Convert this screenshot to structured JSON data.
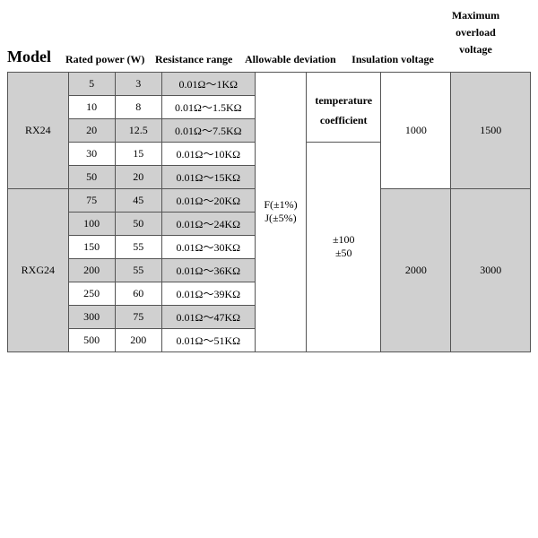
{
  "headers": {
    "model": "Model",
    "rated_power": "Rated power (W)",
    "resistance_range": "Resistance range",
    "allowable_deviation": "Allowable deviation",
    "insulation_voltage": "Insulation voltage",
    "max_overload_voltage_l1": "Maximum",
    "max_overload_voltage_l2": "overload",
    "max_overload_voltage_l3": "voltage"
  },
  "models": {
    "rx24": "RX24",
    "rxg24": "RXG24"
  },
  "rx24_rows": [
    {
      "p1": "5",
      "p2": "3",
      "range": "0.01Ω～1KΩ"
    },
    {
      "p1": "10",
      "p2": "8",
      "range": "0.01Ω～1.5KΩ"
    },
    {
      "p1": "20",
      "p2": "12.5",
      "range": "0.01Ω～7.5KΩ"
    },
    {
      "p1": "30",
      "p2": "15",
      "range": "0.01Ω～10KΩ"
    },
    {
      "p1": "50",
      "p2": "20",
      "range": "0.01Ω～15KΩ"
    }
  ],
  "rxg24_rows": [
    {
      "p1": "75",
      "p2": "45",
      "range": "0.01Ω～20KΩ"
    },
    {
      "p1": "100",
      "p2": "50",
      "range": "0.01Ω～24KΩ"
    },
    {
      "p1": "150",
      "p2": "55",
      "range": "0.01Ω～30KΩ"
    },
    {
      "p1": "200",
      "p2": "55",
      "range": "0.01Ω～36KΩ"
    },
    {
      "p1": "250",
      "p2": "60",
      "range": "0.01Ω～39KΩ"
    },
    {
      "p1": "300",
      "p2": "75",
      "range": "0.01Ω～47KΩ"
    },
    {
      "p1": "500",
      "p2": "200",
      "range": "0.01Ω～51KΩ"
    }
  ],
  "deviation": {
    "f": "F(±1%)",
    "j": "J(±5%)"
  },
  "temp_coef": {
    "label_l1": "temperature",
    "label_l2": "coefficient",
    "v1": "±100",
    "v2": "±50"
  },
  "rx24_ins": "1000",
  "rx24_max": "1500",
  "rxg24_ins": "2000",
  "rxg24_max": "3000",
  "colors": {
    "shaded": "#d0d0d0",
    "border": "#555555",
    "bg": "#ffffff",
    "text": "#000000"
  }
}
